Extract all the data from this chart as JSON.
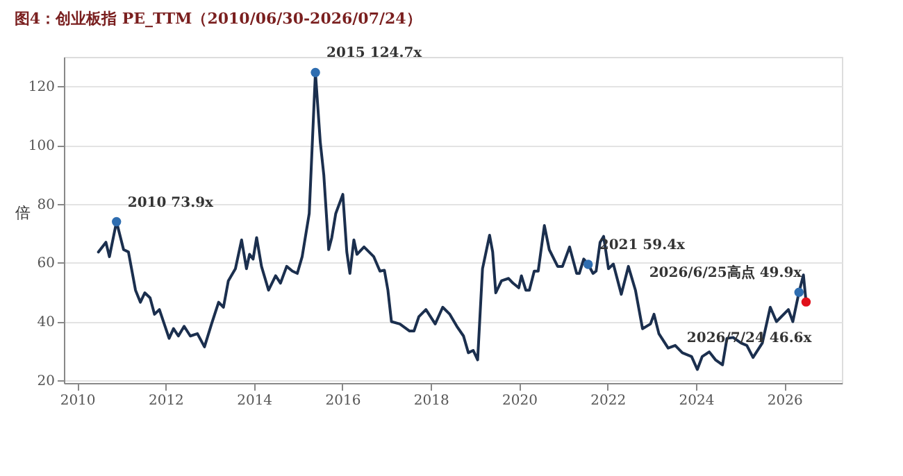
{
  "chart_data": {
    "type": "line",
    "title": "图4：创业板指 PE_TTM（2010/06/30-2026/07/24）",
    "ylabel": "倍",
    "xlim": [
      2009.7,
      2027.3
    ],
    "xticks": [
      2010,
      2012,
      2014,
      2016,
      2018,
      2020,
      2022,
      2024,
      2026
    ],
    "ylim": [
      19,
      130
    ],
    "yticks": [
      20,
      40,
      60,
      80,
      100,
      120
    ],
    "grid": "y",
    "legend": false,
    "line_style": "solid",
    "series": [
      {
        "color": "#1b2f4e",
        "marker": "none",
        "x": [
          2010.48,
          2010.65,
          2010.73,
          2010.89,
          2011.05,
          2011.16,
          2011.32,
          2011.43,
          2011.53,
          2011.65,
          2011.75,
          2011.86,
          2012.08,
          2012.18,
          2012.29,
          2012.42,
          2012.56,
          2012.72,
          2012.88,
          2013.04,
          2013.2,
          2013.31,
          2013.42,
          2013.58,
          2013.72,
          2013.83,
          2013.9,
          2013.98,
          2014.06,
          2014.17,
          2014.33,
          2014.49,
          2014.6,
          2014.74,
          2014.87,
          2014.98,
          2015.09,
          2015.25,
          2015.39,
          2015.5,
          2015.58,
          2015.69,
          2015.76,
          2015.85,
          2016.01,
          2016.1,
          2016.17,
          2016.26,
          2016.33,
          2016.49,
          2016.71,
          2016.85,
          2016.95,
          2017.03,
          2017.11,
          2017.3,
          2017.52,
          2017.62,
          2017.73,
          2017.89,
          2018.1,
          2018.27,
          2018.43,
          2018.59,
          2018.74,
          2018.85,
          2018.96,
          2019.06,
          2019.17,
          2019.33,
          2019.4,
          2019.47,
          2019.6,
          2019.76,
          2019.86,
          2019.99,
          2020.05,
          2020.15,
          2020.23,
          2020.34,
          2020.43,
          2020.57,
          2020.68,
          2020.87,
          2020.98,
          2021.14,
          2021.3,
          2021.36,
          2021.46,
          2021.56,
          2021.67,
          2021.74,
          2021.83,
          2021.91,
          2022.02,
          2022.13,
          2022.31,
          2022.47,
          2022.63,
          2022.79,
          2022.97,
          2023.05,
          2023.16,
          2023.37,
          2023.53,
          2023.69,
          2023.9,
          2024.03,
          2024.14,
          2024.3,
          2024.44,
          2024.6,
          2024.7,
          2024.84,
          2025.02,
          2025.15,
          2025.29,
          2025.5,
          2025.68,
          2025.82,
          2026.09,
          2026.19,
          2026.33,
          2026.43,
          2026.49
        ],
        "values": [
          63.6,
          66.9,
          62,
          73.9,
          64.4,
          63.6,
          50.6,
          46.5,
          49.7,
          48,
          42.4,
          44,
          34.2,
          37.5,
          35,
          38.3,
          35,
          35.8,
          31.3,
          39.1,
          46.5,
          44.8,
          53.8,
          57.9,
          67.7,
          57.9,
          62.8,
          61.2,
          68.5,
          58.7,
          50.6,
          55.5,
          53,
          58.7,
          57.1,
          56.3,
          62,
          76.7,
          124.7,
          101,
          89.8,
          64.4,
          68.5,
          76.7,
          83.2,
          63.6,
          56.3,
          67.7,
          62.8,
          65.3,
          62,
          57.1,
          57.4,
          50.6,
          39.9,
          39.1,
          36.7,
          36.7,
          41.6,
          44,
          39.1,
          44.8,
          42.4,
          38.3,
          35,
          29.3,
          30.1,
          26.9,
          57.9,
          69.3,
          63.6,
          49.7,
          53.8,
          54.6,
          53,
          51.4,
          55.5,
          50.6,
          50.6,
          57.1,
          57.1,
          72.6,
          64.4,
          58.7,
          58.7,
          65.3,
          56.3,
          56.3,
          61.2,
          59.4,
          56.3,
          57.1,
          66.9,
          68.9,
          57.9,
          59.5,
          49.2,
          58.7,
          50.6,
          37.5,
          39.1,
          42.4,
          35.8,
          30.9,
          31.8,
          29.3,
          28,
          23.6,
          28,
          29.6,
          26.9,
          25.2,
          34.2,
          34.5,
          32.6,
          31.8,
          27.7,
          32.6,
          44.8,
          39.9,
          44,
          39.9,
          49.9,
          55.8,
          46.6
        ]
      },
      {
        "type": "scatter",
        "marker": "circle",
        "x": [
          2010.89,
          2015.39,
          2021.56,
          2026.33,
          2026.49
        ],
        "values": [
          73.9,
          124.7,
          59.4,
          49.9,
          46.6
        ],
        "colors": [
          "#2e6db0",
          "#2e6db0",
          "#2e6db0",
          "#2e6db0",
          "#e0101a"
        ]
      }
    ],
    "annotations": [
      {
        "text": "2010 73.9x",
        "x": 2010.89,
        "y": 73.9
      },
      {
        "text": "2015 124.7x",
        "x": 2015.39,
        "y": 124.7
      },
      {
        "text": "2021 59.4x",
        "x": 2021.56,
        "y": 59.4
      },
      {
        "text": "2026/6/25高点 49.9x",
        "x": 2026.33,
        "y": 49.9
      },
      {
        "text": "2026/7/24 46.6x",
        "x": 2026.49,
        "y": 46.6
      }
    ]
  }
}
